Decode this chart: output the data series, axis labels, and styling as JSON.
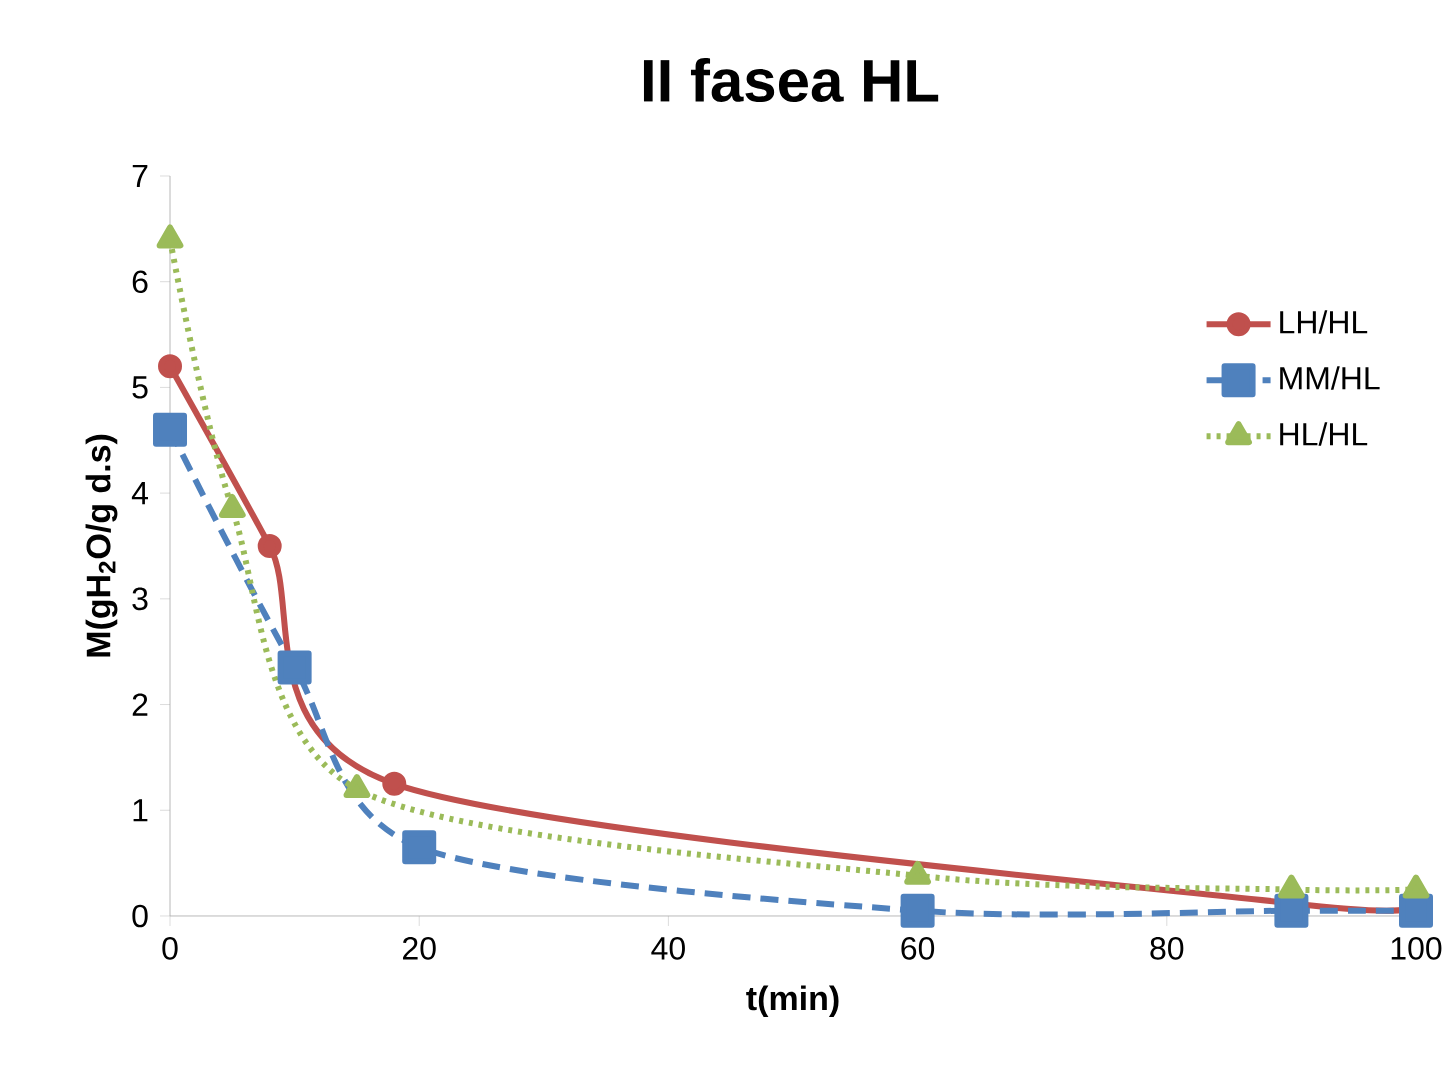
{
  "chart_data": {
    "type": "line",
    "title": "II fasea HL",
    "xlabel": "t(min)",
    "ylabel": "M(gH$_{2}$O/g d.s)",
    "xlim": [
      0,
      100
    ],
    "xticks": [
      0,
      20,
      40,
      60,
      80,
      100
    ],
    "ylim": [
      0,
      7
    ],
    "yticks": [
      0,
      1,
      2,
      3,
      4,
      5,
      6,
      7
    ],
    "legend": "top right",
    "grid": false,
    "series": [
      {
        "name": "LH/HL",
        "color": "#c0504d",
        "marker": "circle",
        "line_style": "solid",
        "x": [
          0,
          8,
          18,
          60,
          90,
          100
        ],
        "values": [
          5.2,
          3.5,
          1.25,
          null,
          0.12,
          0.12
        ]
      },
      {
        "name": "MM/HL",
        "color": "#4f81bd",
        "marker": "square",
        "line_style": "dashed",
        "x": [
          0,
          10,
          20,
          60,
          90,
          100
        ],
        "values": [
          4.6,
          2.35,
          0.65,
          0.05,
          0.05,
          0.05
        ]
      },
      {
        "name": "HL/HL",
        "color": "#9bbb59",
        "marker": "triangle",
        "line_style": "dotted",
        "x": [
          0,
          5,
          15,
          60,
          90,
          100
        ],
        "values": [
          6.4,
          3.85,
          1.2,
          0.38,
          0.25,
          0.25
        ]
      }
    ]
  }
}
